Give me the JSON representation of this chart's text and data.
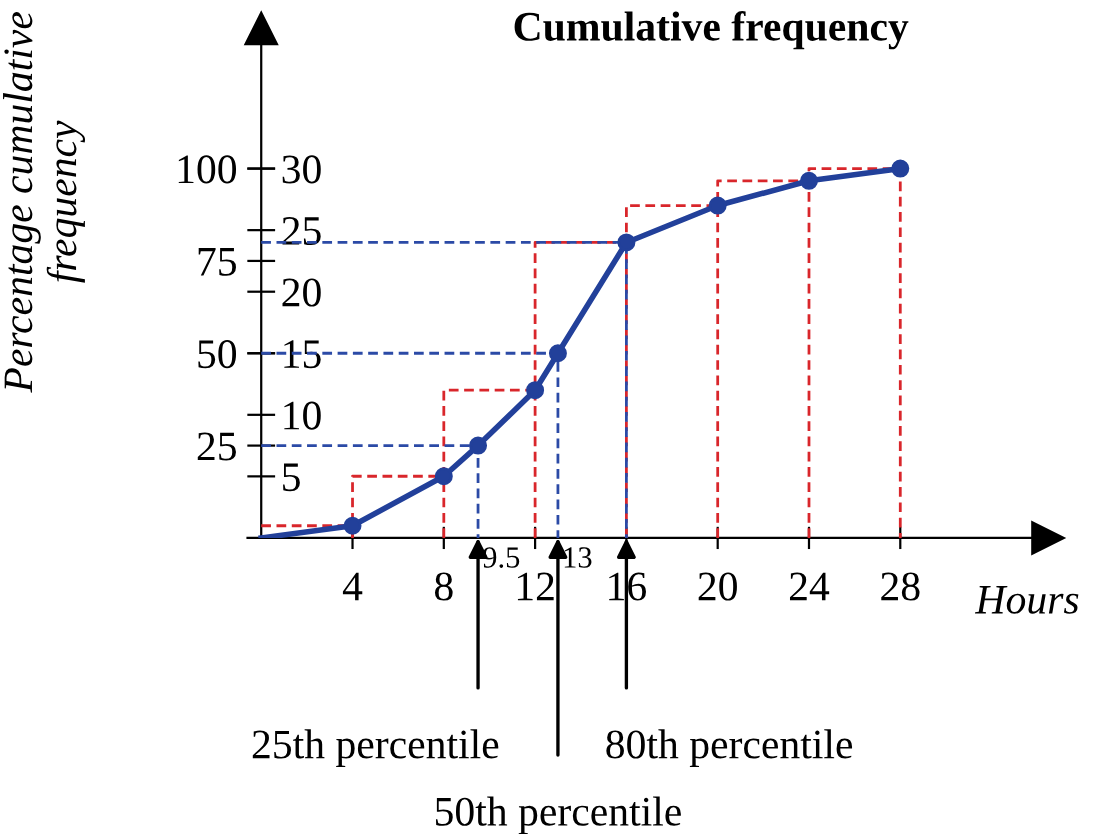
{
  "chart_data": {
    "type": "line",
    "title": "Cumulative frequency",
    "xlabel": "Hours",
    "ylabel": "Percentage cumulative\nfrequency",
    "xlim": [
      -0.6,
      35
    ],
    "ylim": [
      0,
      140
    ],
    "y2lim": [
      0,
      42
    ],
    "xticks": [
      4,
      8,
      12,
      16,
      20,
      24,
      28
    ],
    "yticks": [
      25,
      50,
      75,
      100
    ],
    "y2ticks": [
      5,
      10,
      15,
      20,
      25,
      30
    ],
    "marker": "none",
    "grid": false,
    "series": [
      {
        "color": "#d9262b",
        "line_style": "dashed",
        "x": [
          0,
          4
        ],
        "values": [
          3.3,
          3.3
        ]
      },
      {
        "color": "#d9262b",
        "line_style": "dashed",
        "x": [
          4,
          4,
          8
        ],
        "values": [
          0,
          16.7,
          16.7
        ]
      },
      {
        "color": "#d9262b",
        "line_style": "dashed",
        "x": [
          8,
          8,
          12
        ],
        "values": [
          0,
          40,
          40
        ]
      },
      {
        "color": "#d9262b",
        "line_style": "dashed",
        "x": [
          12,
          12,
          16
        ],
        "values": [
          0,
          80,
          80
        ]
      },
      {
        "color": "#d9262b",
        "line_style": "dashed",
        "x": [
          16,
          16,
          20
        ],
        "values": [
          0,
          90,
          90
        ]
      },
      {
        "color": "#d9262b",
        "line_style": "dashed",
        "x": [
          20,
          20,
          24
        ],
        "values": [
          0,
          96.7,
          96.7
        ]
      },
      {
        "color": "#d9262b",
        "line_style": "dashed",
        "x": [
          24,
          24,
          28,
          28
        ],
        "values": [
          0,
          100,
          100,
          0
        ]
      },
      {
        "color": "#2b4aa6",
        "line_style": "dashed",
        "x": [
          0,
          9.5,
          9.5
        ],
        "values": [
          25,
          25,
          0
        ]
      },
      {
        "color": "#2b4aa6",
        "line_style": "dashed",
        "x": [
          0,
          13,
          13
        ],
        "values": [
          50,
          50,
          0
        ]
      },
      {
        "color": "#2b4aa6",
        "line_style": "dashed",
        "x": [
          0,
          16,
          16
        ],
        "values": [
          80,
          80,
          0
        ]
      },
      {
        "color": "#22409a",
        "line_style": "solid",
        "x": [
          0,
          4,
          8,
          9.5,
          12,
          13,
          16,
          20,
          24,
          28
        ],
        "values": [
          0,
          3.3,
          16.7,
          25,
          40,
          50,
          80,
          90,
          96.7,
          100
        ]
      },
      {
        "type": "scatter",
        "color": "#22409a",
        "marker": "circle",
        "x": [
          4,
          8,
          9.5,
          12,
          13,
          16,
          20,
          24,
          28
        ],
        "values": [
          3.3,
          16.7,
          25,
          40,
          50,
          80,
          90,
          96.7,
          100
        ]
      }
    ],
    "annotations": [
      {
        "text": "9.5",
        "x": 9.5,
        "y": 0
      },
      {
        "text": "13",
        "x": 13,
        "y": 0
      },
      {
        "text": "25th percentile",
        "x": 9.5,
        "y": 0
      },
      {
        "text": "50th percentile",
        "x": 13,
        "y": 0
      },
      {
        "text": "80th percentile",
        "x": 16,
        "y": 0
      }
    ]
  }
}
